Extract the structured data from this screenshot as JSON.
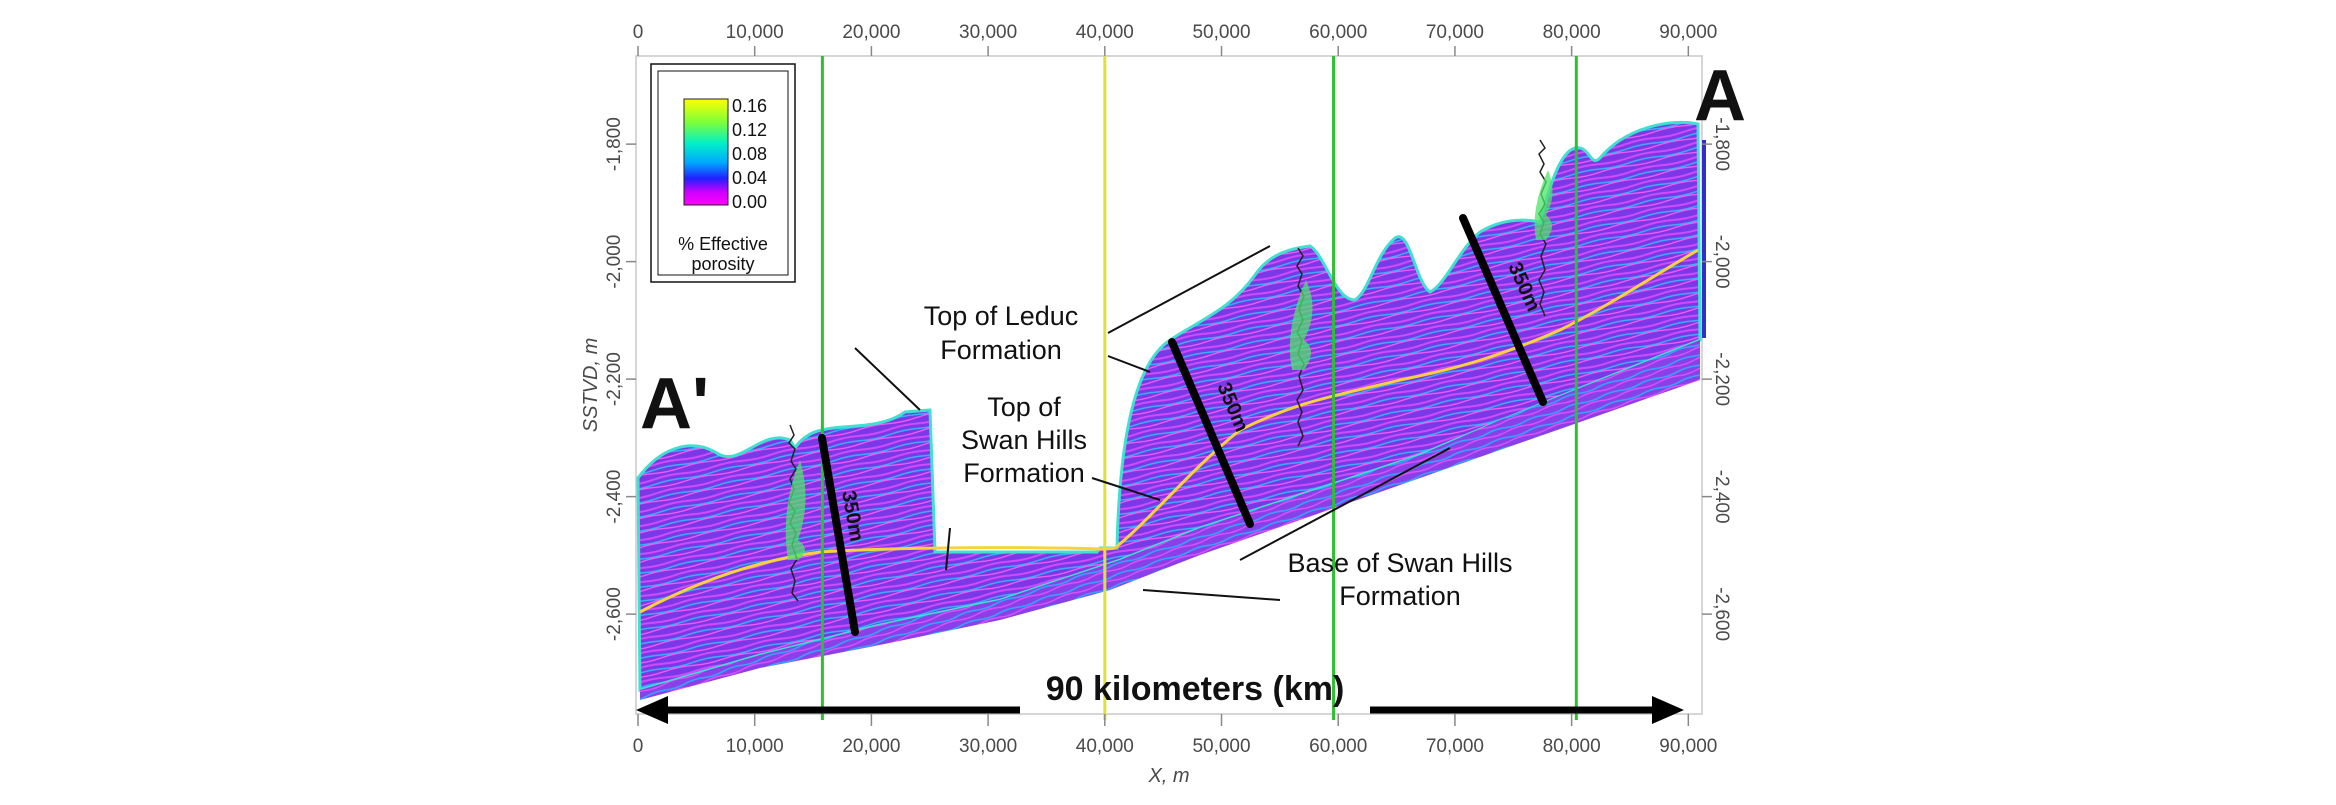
{
  "axes": {
    "x_label": "X, m",
    "y_label": "SSTVD, m",
    "x_ticks": [
      "0",
      "10,000",
      "20,000",
      "30,000",
      "40,000",
      "50,000",
      "60,000",
      "70,000",
      "80,000",
      "90,000"
    ],
    "x_tick_values": [
      0,
      10000,
      20000,
      30000,
      40000,
      50000,
      60000,
      70000,
      80000,
      90000
    ],
    "y_ticks_left": [
      "-1,800",
      "-2,000",
      "-2,200",
      "-2,400",
      "-2,600"
    ],
    "y_ticks_right": [
      "-1,800",
      "-2,000",
      "-2,200",
      "-2,400",
      "-2,600"
    ],
    "y_tick_values": [
      -1800,
      -2000,
      -2200,
      -2400,
      -2600
    ]
  },
  "legend": {
    "ticks": [
      "0.16",
      "0.12",
      "0.08",
      "0.04",
      "0.00"
    ],
    "title_line1": "% Effective",
    "title_line2": "porosity",
    "colors": [
      "#ffff00",
      "#7dff3a",
      "#00f0c8",
      "#00a8ff",
      "#2020ff",
      "#d000ff",
      "#ff00ff"
    ]
  },
  "endpoints": {
    "left": "A'",
    "right": "A"
  },
  "annotations": {
    "leduc_line1": "Top of Leduc",
    "leduc_line2": "Formation",
    "swan_line1": "Top of",
    "swan_line2": "Swan Hills",
    "swan_line3": "Formation",
    "base_line1": "Base of Swan Hills",
    "base_line2": "Formation"
  },
  "thickness_labels": [
    "350m",
    "350m",
    "350m"
  ],
  "scale_bar": "90 kilometers (km)",
  "wells": [
    {
      "x": 15800,
      "color": "#2fbf2f"
    },
    {
      "x": 40000,
      "color": "#e0e03a"
    },
    {
      "x": 59600,
      "color": "#2fbf2f"
    },
    {
      "x": 80400,
      "color": "#2fbf2f"
    }
  ]
}
